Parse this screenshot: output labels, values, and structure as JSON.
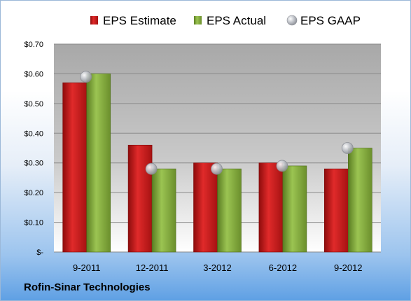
{
  "company": "Rofin-Sinar Technologies",
  "colors": {
    "estimate": "#cc1a1a",
    "actual": "#7da53a",
    "gaap": "#b4b7bd"
  },
  "chart_data": {
    "type": "bar",
    "categories": [
      "9-2011",
      "12-2011",
      "3-2012",
      "6-2012",
      "9-2012"
    ],
    "series": [
      {
        "name": "EPS Estimate",
        "kind": "bar",
        "values": [
          0.57,
          0.36,
          0.3,
          0.3,
          0.28
        ]
      },
      {
        "name": "EPS Actual",
        "kind": "bar",
        "values": [
          0.6,
          0.28,
          0.28,
          0.29,
          0.35
        ]
      },
      {
        "name": "EPS GAAP",
        "kind": "marker",
        "values": [
          0.59,
          0.28,
          0.28,
          0.29,
          0.35
        ]
      }
    ],
    "yticks": [
      "$-",
      "$0.10",
      "$0.20",
      "$0.30",
      "$0.40",
      "$0.50",
      "$0.60",
      "$0.70"
    ],
    "ylim": [
      0,
      0.7
    ],
    "grid": true,
    "legend": "top"
  }
}
